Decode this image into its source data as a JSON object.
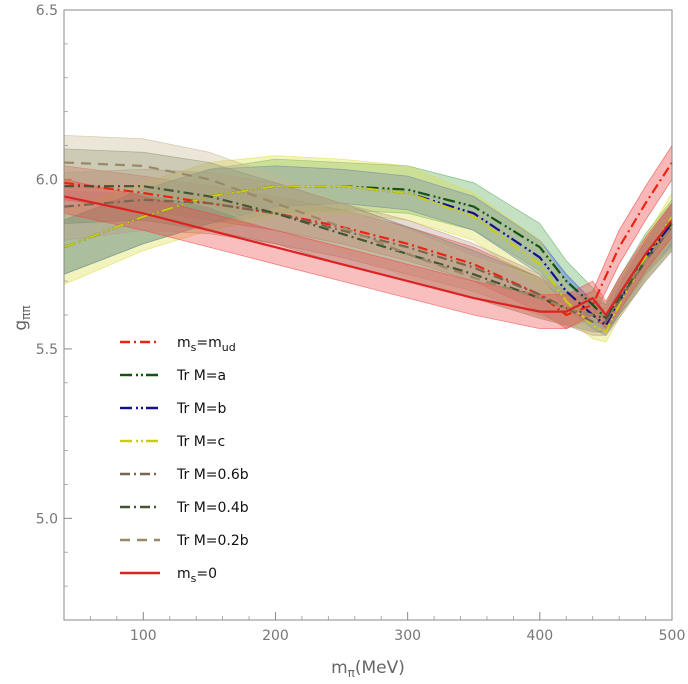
{
  "chart_data": {
    "type": "line",
    "title": "",
    "xlabel_main": "m",
    "xlabel_sub": "π",
    "xlabel_unit": "(MeV)",
    "ylabel_main": "g",
    "ylabel_sub": "ππ",
    "xlim": [
      40,
      500
    ],
    "ylim": [
      4.7,
      6.5
    ],
    "xticks": [
      100,
      200,
      300,
      400,
      500
    ],
    "yticks": [
      5.0,
      5.5,
      6.0,
      6.5
    ],
    "xtick_labels": [
      "100",
      "200",
      "300",
      "400",
      "500"
    ],
    "ytick_labels": [
      "5.0",
      "5.5",
      "6.0",
      "6.5"
    ],
    "legend_position": "lower-left",
    "series": [
      {
        "name": "m_s=m_ud",
        "label_main": "m",
        "label_sub": "s",
        "label_mid": "=m",
        "label_sub2": "ud",
        "color": "#ee2211",
        "band_color": "#ee3333",
        "dash": "10,4,2,4",
        "x": [
          40,
          100,
          150,
          200,
          250,
          300,
          350,
          400,
          420,
          440,
          460,
          480,
          500
        ],
        "y": [
          5.99,
          5.96,
          5.93,
          5.9,
          5.86,
          5.81,
          5.75,
          5.66,
          5.6,
          5.63,
          5.8,
          5.93,
          6.05
        ],
        "band": [
          0.05,
          0.05,
          0.05,
          0.05,
          0.05,
          0.05,
          0.05,
          0.05,
          0.04,
          0.04,
          0.05,
          0.05,
          0.05
        ]
      },
      {
        "name": "Tr M=a",
        "label_main": "Tr M=a",
        "color": "#115511",
        "band_color": "#55aa55",
        "dash": "12,4,2,3,2,3",
        "x": [
          40,
          100,
          150,
          200,
          250,
          300,
          350,
          400,
          420,
          440,
          450,
          460,
          480,
          500
        ],
        "y": [
          5.8,
          5.89,
          5.95,
          5.98,
          5.98,
          5.97,
          5.92,
          5.8,
          5.7,
          5.63,
          5.59,
          5.66,
          5.78,
          5.87
        ],
        "band": [
          0.08,
          0.08,
          0.08,
          0.08,
          0.07,
          0.07,
          0.07,
          0.07,
          0.06,
          0.05,
          0.04,
          0.05,
          0.06,
          0.07
        ]
      },
      {
        "name": "Tr M=b",
        "label_main": "Tr M=b",
        "color": "#111188",
        "band_color": "#3355dd",
        "dash": "12,4,2,3,2,3",
        "x": [
          40,
          100,
          150,
          200,
          250,
          300,
          350,
          400,
          420,
          440,
          450,
          460,
          480,
          500
        ],
        "y": [
          5.8,
          5.89,
          5.95,
          5.98,
          5.98,
          5.96,
          5.9,
          5.77,
          5.67,
          5.6,
          5.57,
          5.64,
          5.77,
          5.87
        ],
        "band": [
          0.08,
          0.08,
          0.08,
          0.06,
          0.05,
          0.05,
          0.05,
          0.05,
          0.05,
          0.04,
          0.03,
          0.04,
          0.05,
          0.06
        ]
      },
      {
        "name": "Tr M=c",
        "label_main": "Tr M=c",
        "color": "#cccc11",
        "band_color": "#dddd44",
        "dash": "12,4,2,3,2,3",
        "x": [
          40,
          100,
          150,
          200,
          250,
          300,
          350,
          400,
          420,
          440,
          450,
          460,
          480,
          500
        ],
        "y": [
          5.8,
          5.89,
          5.95,
          5.98,
          5.98,
          5.96,
          5.89,
          5.75,
          5.64,
          5.57,
          5.55,
          5.63,
          5.77,
          5.89
        ],
        "band": [
          0.11,
          0.1,
          0.1,
          0.09,
          0.08,
          0.08,
          0.07,
          0.07,
          0.05,
          0.04,
          0.03,
          0.04,
          0.06,
          0.07
        ]
      },
      {
        "name": "Tr M=0.6b",
        "label_main": "Tr M=0.6b",
        "color": "#7a6650",
        "band_color": "#bb9988",
        "dash": "10,4,2,4",
        "x": [
          40,
          100,
          150,
          200,
          250,
          300,
          350,
          400,
          420,
          440,
          450,
          460,
          480,
          500
        ],
        "y": [
          5.92,
          5.94,
          5.93,
          5.9,
          5.85,
          5.8,
          5.74,
          5.66,
          5.62,
          5.58,
          5.58,
          5.64,
          5.76,
          5.86
        ],
        "band": [
          0.1,
          0.09,
          0.09,
          0.09,
          0.08,
          0.08,
          0.07,
          0.06,
          0.05,
          0.04,
          0.04,
          0.05,
          0.06,
          0.07
        ]
      },
      {
        "name": "Tr M=0.4b",
        "label_main": "Tr M=0.4b",
        "color": "#445533",
        "band_color": "#778866",
        "dash": "10,4,2,4",
        "x": [
          40,
          100,
          150,
          200,
          250,
          300,
          350,
          400,
          420,
          440,
          450,
          460,
          480,
          500
        ],
        "y": [
          5.98,
          5.98,
          5.95,
          5.9,
          5.84,
          5.78,
          5.72,
          5.65,
          5.62,
          5.6,
          5.59,
          5.65,
          5.76,
          5.86
        ],
        "band": [
          0.11,
          0.1,
          0.1,
          0.09,
          0.09,
          0.08,
          0.07,
          0.06,
          0.05,
          0.05,
          0.04,
          0.05,
          0.06,
          0.07
        ]
      },
      {
        "name": "Tr M=0.2b",
        "label_main": "Tr M=0.2b",
        "color": "#9a8866",
        "band_color": "#c8b890",
        "dash": "10,7",
        "x": [
          40,
          100,
          150,
          200,
          250,
          300,
          350,
          400,
          420,
          440,
          450,
          460,
          480,
          500
        ],
        "y": [
          6.05,
          6.04,
          6.0,
          5.93,
          5.86,
          5.78,
          5.71,
          5.65,
          5.62,
          5.6,
          5.6,
          5.66,
          5.76,
          5.86
        ],
        "band": [
          0.08,
          0.08,
          0.08,
          0.08,
          0.07,
          0.07,
          0.06,
          0.06,
          0.05,
          0.05,
          0.04,
          0.05,
          0.06,
          0.07
        ]
      },
      {
        "name": "m_s=0",
        "label_main": "m",
        "label_sub": "s",
        "label_mid": "=0",
        "label_sub2": "",
        "color": "#dd2222",
        "band_color": "#ee4444",
        "dash": "",
        "x": [
          40,
          100,
          150,
          200,
          250,
          300,
          350,
          400,
          420,
          440,
          450,
          460,
          480,
          500
        ],
        "y": [
          5.95,
          5.9,
          5.85,
          5.8,
          5.75,
          5.7,
          5.65,
          5.61,
          5.61,
          5.65,
          5.6,
          5.66,
          5.78,
          5.88
        ],
        "band": [
          0.05,
          0.05,
          0.05,
          0.05,
          0.05,
          0.05,
          0.05,
          0.05,
          0.05,
          0.05,
          0.04,
          0.05,
          0.05,
          0.05
        ]
      }
    ]
  }
}
